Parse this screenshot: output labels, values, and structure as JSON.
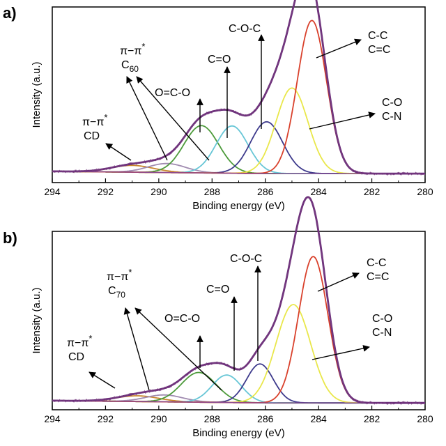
{
  "colors": {
    "envelope": "#6b2f7a",
    "raw": "#7a3f82",
    "baseline": "#8a4a90",
    "cc": "#d9412c",
    "co": "#e9e74a",
    "coc": "#3d3a8c",
    "c_eq_o": "#67c6d6",
    "o_c_o": "#4c9a3a",
    "pi_fullerene": "#a08bb0",
    "pi_cd": "#c8862e"
  },
  "chart_data": [
    {
      "type": "line",
      "panel": "a)",
      "xlabel": "Binding energy (eV)",
      "ylabel": "Intensity (a.u.)",
      "xlim": [
        294,
        280
      ],
      "x_reversed": true,
      "xticks": [
        "294",
        "292",
        "290",
        "288",
        "286",
        "284",
        "282",
        "280"
      ],
      "baseline": 0.04,
      "peaks": [
        {
          "name": "C-C C=C",
          "center": 284.25,
          "height": 0.68,
          "sigma": 0.55,
          "color_key": "cc"
        },
        {
          "name": "C-O C-N",
          "center": 285.0,
          "height": 0.38,
          "sigma": 0.6,
          "color_key": "co"
        },
        {
          "name": "C-O-C",
          "center": 285.95,
          "height": 0.23,
          "sigma": 0.6,
          "color_key": "coc"
        },
        {
          "name": "C=O",
          "center": 287.25,
          "height": 0.21,
          "sigma": 0.6,
          "color_key": "c_eq_o"
        },
        {
          "name": "O=C-O",
          "center": 288.4,
          "height": 0.21,
          "sigma": 0.65,
          "color_key": "o_c_o"
        },
        {
          "name": "π–π* C60",
          "center": 289.7,
          "height": 0.04,
          "sigma": 0.7,
          "color_key": "pi_fullerene"
        },
        {
          "name": "π–π* CD",
          "center": 291.0,
          "height": 0.03,
          "sigma": 0.8,
          "color_key": "pi_cd"
        }
      ],
      "annotations": {
        "pi_cd": {
          "line1": "π−π",
          "sup": "*",
          "line2": "CD"
        },
        "pi_fullerene": {
          "line1": "π−π",
          "sup": "*",
          "line2": "C",
          "sub": "60"
        },
        "o_c_o": "O=C-O",
        "c_eq_o": "C=O",
        "coc": "C-O-C",
        "cc": {
          "line1": "C-C",
          "line2": "C=C"
        },
        "co": {
          "line1": "C-O",
          "line2": "C-N"
        }
      }
    },
    {
      "type": "line",
      "panel": "b)",
      "xlabel": "Binding energy (eV)",
      "ylabel": "Intensity (a.u.)",
      "xlim": [
        294,
        280
      ],
      "x_reversed": true,
      "xticks": [
        "294",
        "292",
        "290",
        "288",
        "286",
        "284",
        "282",
        "280"
      ],
      "baseline": 0.03,
      "peaks": [
        {
          "name": "C-C C=C",
          "center": 284.2,
          "height": 0.64,
          "sigma": 0.55,
          "color_key": "cc"
        },
        {
          "name": "C-O C-N",
          "center": 284.95,
          "height": 0.43,
          "sigma": 0.65,
          "color_key": "co"
        },
        {
          "name": "C-O-C",
          "center": 286.2,
          "height": 0.17,
          "sigma": 0.5,
          "color_key": "coc"
        },
        {
          "name": "C=O",
          "center": 287.45,
          "height": 0.12,
          "sigma": 0.55,
          "color_key": "c_eq_o"
        },
        {
          "name": "O=C-O",
          "center": 288.5,
          "height": 0.13,
          "sigma": 0.65,
          "color_key": "o_c_o"
        },
        {
          "name": "π–π* C70",
          "center": 289.8,
          "height": 0.03,
          "sigma": 0.7,
          "color_key": "pi_fullerene"
        },
        {
          "name": "π–π* CD",
          "center": 290.8,
          "height": 0.025,
          "sigma": 0.8,
          "color_key": "pi_cd"
        }
      ],
      "annotations": {
        "pi_cd": {
          "line1": "π−π",
          "sup": "*",
          "line2": "CD"
        },
        "pi_fullerene": {
          "line1": "π−π",
          "sup": "*",
          "line2": "C",
          "sub": "70"
        },
        "o_c_o": "O=C-O",
        "c_eq_o": "C=O",
        "coc": "C-O-C",
        "cc": {
          "line1": "C-C",
          "line2": "C=C"
        },
        "co": {
          "line1": "C-O",
          "line2": "C-N"
        }
      }
    }
  ]
}
